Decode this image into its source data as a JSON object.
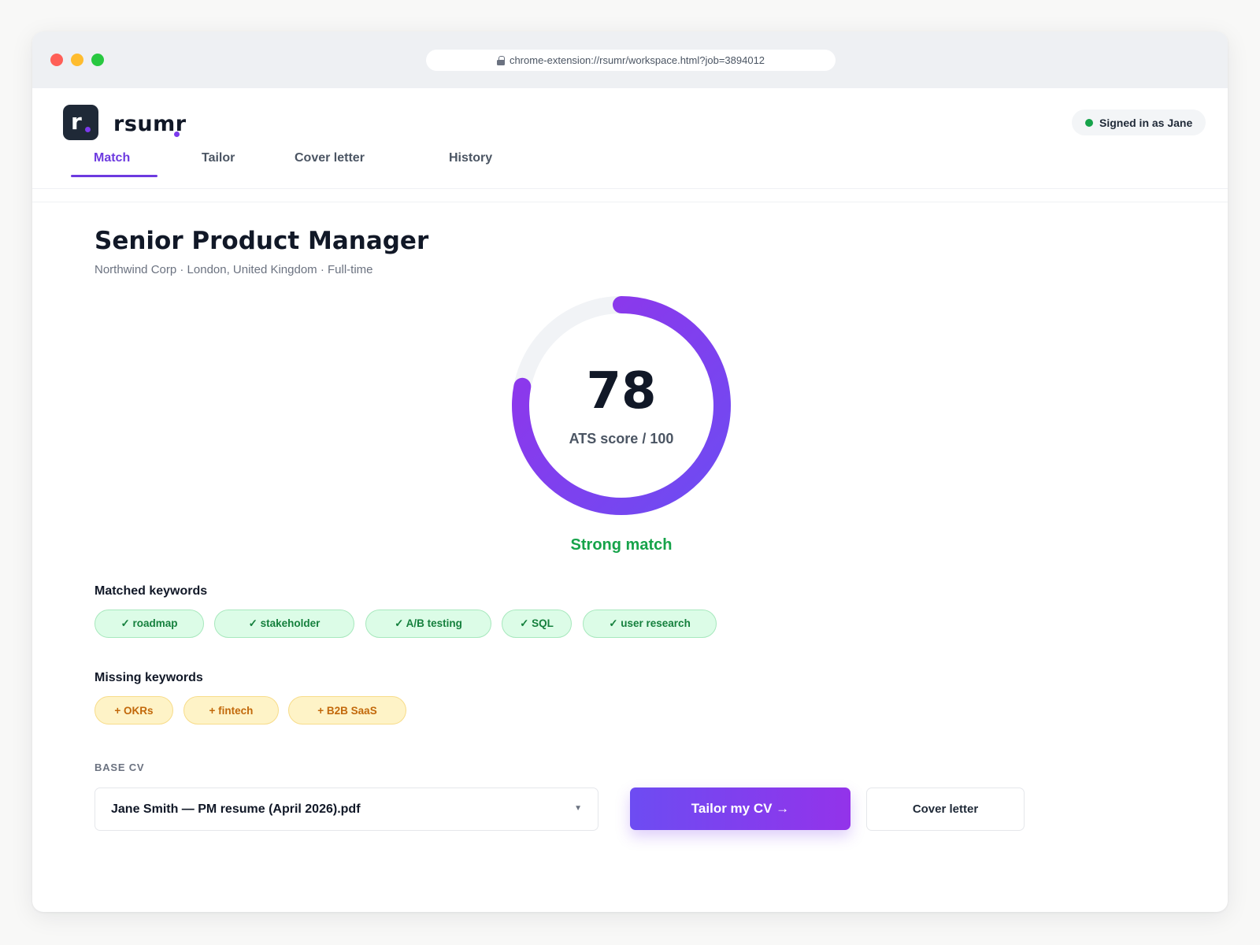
{
  "browser": {
    "url": "chrome-extension://rsumr/workspace.html?job=3894012"
  },
  "header": {
    "brand": "rsumr",
    "logo_letter": "r",
    "signed_in": "Signed in as Jane"
  },
  "tabs": [
    {
      "label": "Match",
      "active": true
    },
    {
      "label": "Tailor",
      "active": false
    },
    {
      "label": "Cover letter",
      "active": false
    },
    {
      "label": "History",
      "active": false
    }
  ],
  "job": {
    "title": "Senior Product Manager",
    "meta": "Northwind Corp · London, United Kingdom · Full-time"
  },
  "score": {
    "value": "78",
    "fraction": 0.78,
    "label": "ATS score / 100",
    "verdict": "Strong match"
  },
  "matched": {
    "label": "Matched keywords",
    "items": [
      "✓  roadmap",
      "✓  stakeholder",
      "✓  A/B testing",
      "✓  SQL",
      "✓  user research"
    ]
  },
  "missing": {
    "label": "Missing keywords",
    "items": [
      "+ OKRs",
      "+ fintech",
      "+ B2B SaaS"
    ]
  },
  "base_cv": {
    "label": "BASE CV",
    "selected": "Jane Smith — PM resume (April 2026).pdf"
  },
  "actions": {
    "primary": "Tailor my CV →",
    "secondary": "Cover letter"
  },
  "colors": {
    "accent": "#6d3ae0",
    "success": "#16a34a",
    "warning": "#c2680a"
  }
}
